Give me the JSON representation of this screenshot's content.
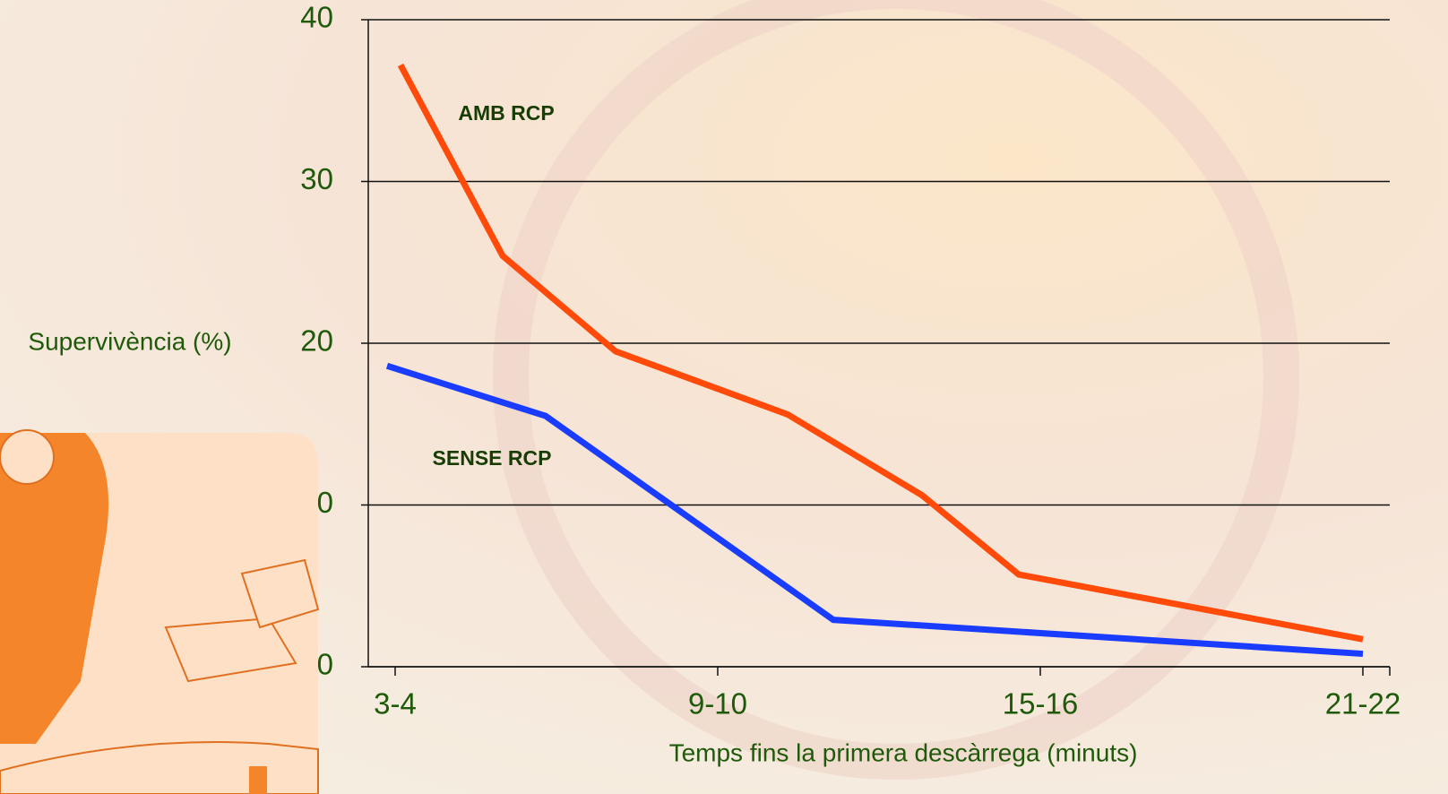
{
  "chart_data": {
    "type": "line",
    "y_label": "Supervivència (%)",
    "x_label": "Temps fins la primera descàrrega (minuts)",
    "annotations": [
      "AMB RCP",
      "SENSE RCP"
    ],
    "xlim": [
      3,
      22
    ],
    "xticks": [
      {
        "value": 3.5,
        "label": "3-4"
      },
      {
        "value": 9.5,
        "label": "9-10"
      },
      {
        "value": 15.5,
        "label": "15-16"
      },
      {
        "value": 21.5,
        "label": "21-22"
      }
    ],
    "ylim": [
      0,
      40
    ],
    "yticks": [
      0,
      10,
      20,
      30,
      40
    ],
    "grid": true,
    "series": [
      {
        "name": "AMB RCP",
        "color": "#ff4a0a",
        "x": [
          3.6,
          5.5,
          7.6,
          10.8,
          13.3,
          15.1,
          21.5
        ],
        "values": [
          37.2,
          25.4,
          19.5,
          15.6,
          10.6,
          5.7,
          1.7
        ]
      },
      {
        "name": "SENSE RCP",
        "color": "#1a3cff",
        "x": [
          3.35,
          6.3,
          11.65,
          21.5
        ],
        "values": [
          18.6,
          15.5,
          2.9,
          0.8
        ]
      }
    ]
  }
}
